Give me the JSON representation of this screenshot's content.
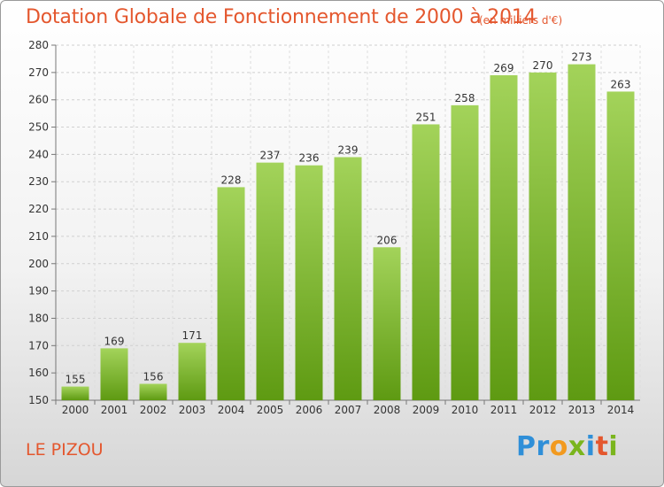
{
  "title": "Dotation Globale de Fonctionnement de 2000 à 2014",
  "subtitle": "(en milliers d'€)",
  "commune": "LE PIZOU",
  "logo": {
    "letters": [
      "P",
      "r",
      "o",
      "x",
      "i",
      "t",
      "i"
    ],
    "colors": [
      "#2f8fd8",
      "#2f8fd8",
      "#f29a1f",
      "#7ab51d",
      "#2f8fd8",
      "#e4572e",
      "#7ab51d"
    ]
  },
  "colors": {
    "bar_top": "#a3d35a",
    "bar_bottom": "#5e9a12",
    "accent": "#e4572e"
  },
  "chart_data": {
    "type": "bar",
    "categories": [
      "2000",
      "2001",
      "2002",
      "2003",
      "2004",
      "2005",
      "2006",
      "2007",
      "2008",
      "2009",
      "2010",
      "2011",
      "2012",
      "2013",
      "2014"
    ],
    "values": [
      155,
      169,
      156,
      171,
      228,
      237,
      236,
      239,
      206,
      251,
      258,
      269,
      270,
      273,
      263
    ],
    "title": "Dotation Globale de Fonctionnement de 2000 à 2014",
    "subtitle": "(en milliers d'€)",
    "xlabel": "",
    "ylabel": "",
    "ylim": [
      150,
      280
    ],
    "yticks": [
      150,
      160,
      170,
      180,
      190,
      200,
      210,
      220,
      230,
      240,
      250,
      260,
      270,
      280
    ],
    "grid": true,
    "data_labels": true
  }
}
